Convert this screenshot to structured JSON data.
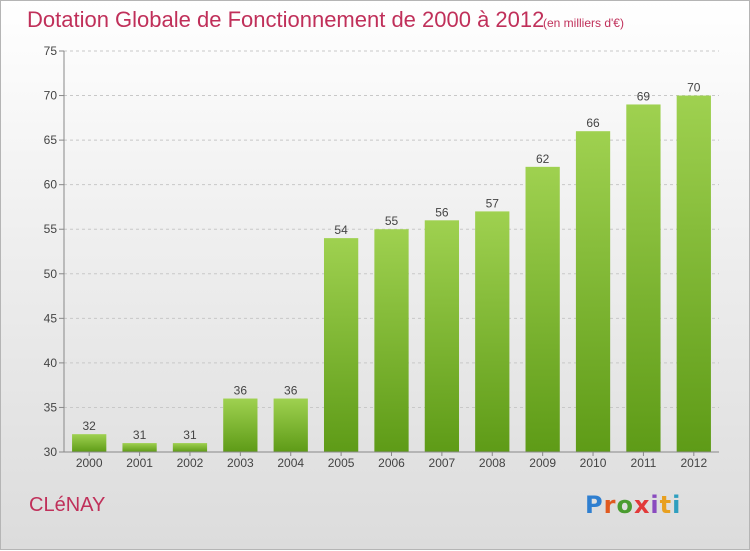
{
  "chart_data": {
    "type": "bar",
    "title": "Dotation Globale de Fonctionnement de 2000 à 2012",
    "subtitle": "(en milliers d'€)",
    "categories": [
      "2000",
      "2001",
      "2002",
      "2003",
      "2004",
      "2005",
      "2006",
      "2007",
      "2008",
      "2009",
      "2010",
      "2011",
      "2012"
    ],
    "values": [
      32,
      31,
      31,
      36,
      36,
      54,
      55,
      56,
      57,
      62,
      66,
      69,
      70
    ],
    "ylim": [
      30,
      75
    ],
    "yticks": [
      30,
      35,
      40,
      45,
      50,
      55,
      60,
      65,
      70,
      75
    ],
    "grid": true,
    "bar_color_top": "#9fd150",
    "bar_color_bottom": "#5e9b17"
  },
  "commune": "CLéNAY",
  "logo": {
    "text": "Proxiti",
    "letter_colors": [
      "#2f7fd0",
      "#e05a20",
      "#4a9c2f",
      "#e23a3a",
      "#8a4bbf",
      "#e8a020",
      "#2f9fbf"
    ]
  }
}
